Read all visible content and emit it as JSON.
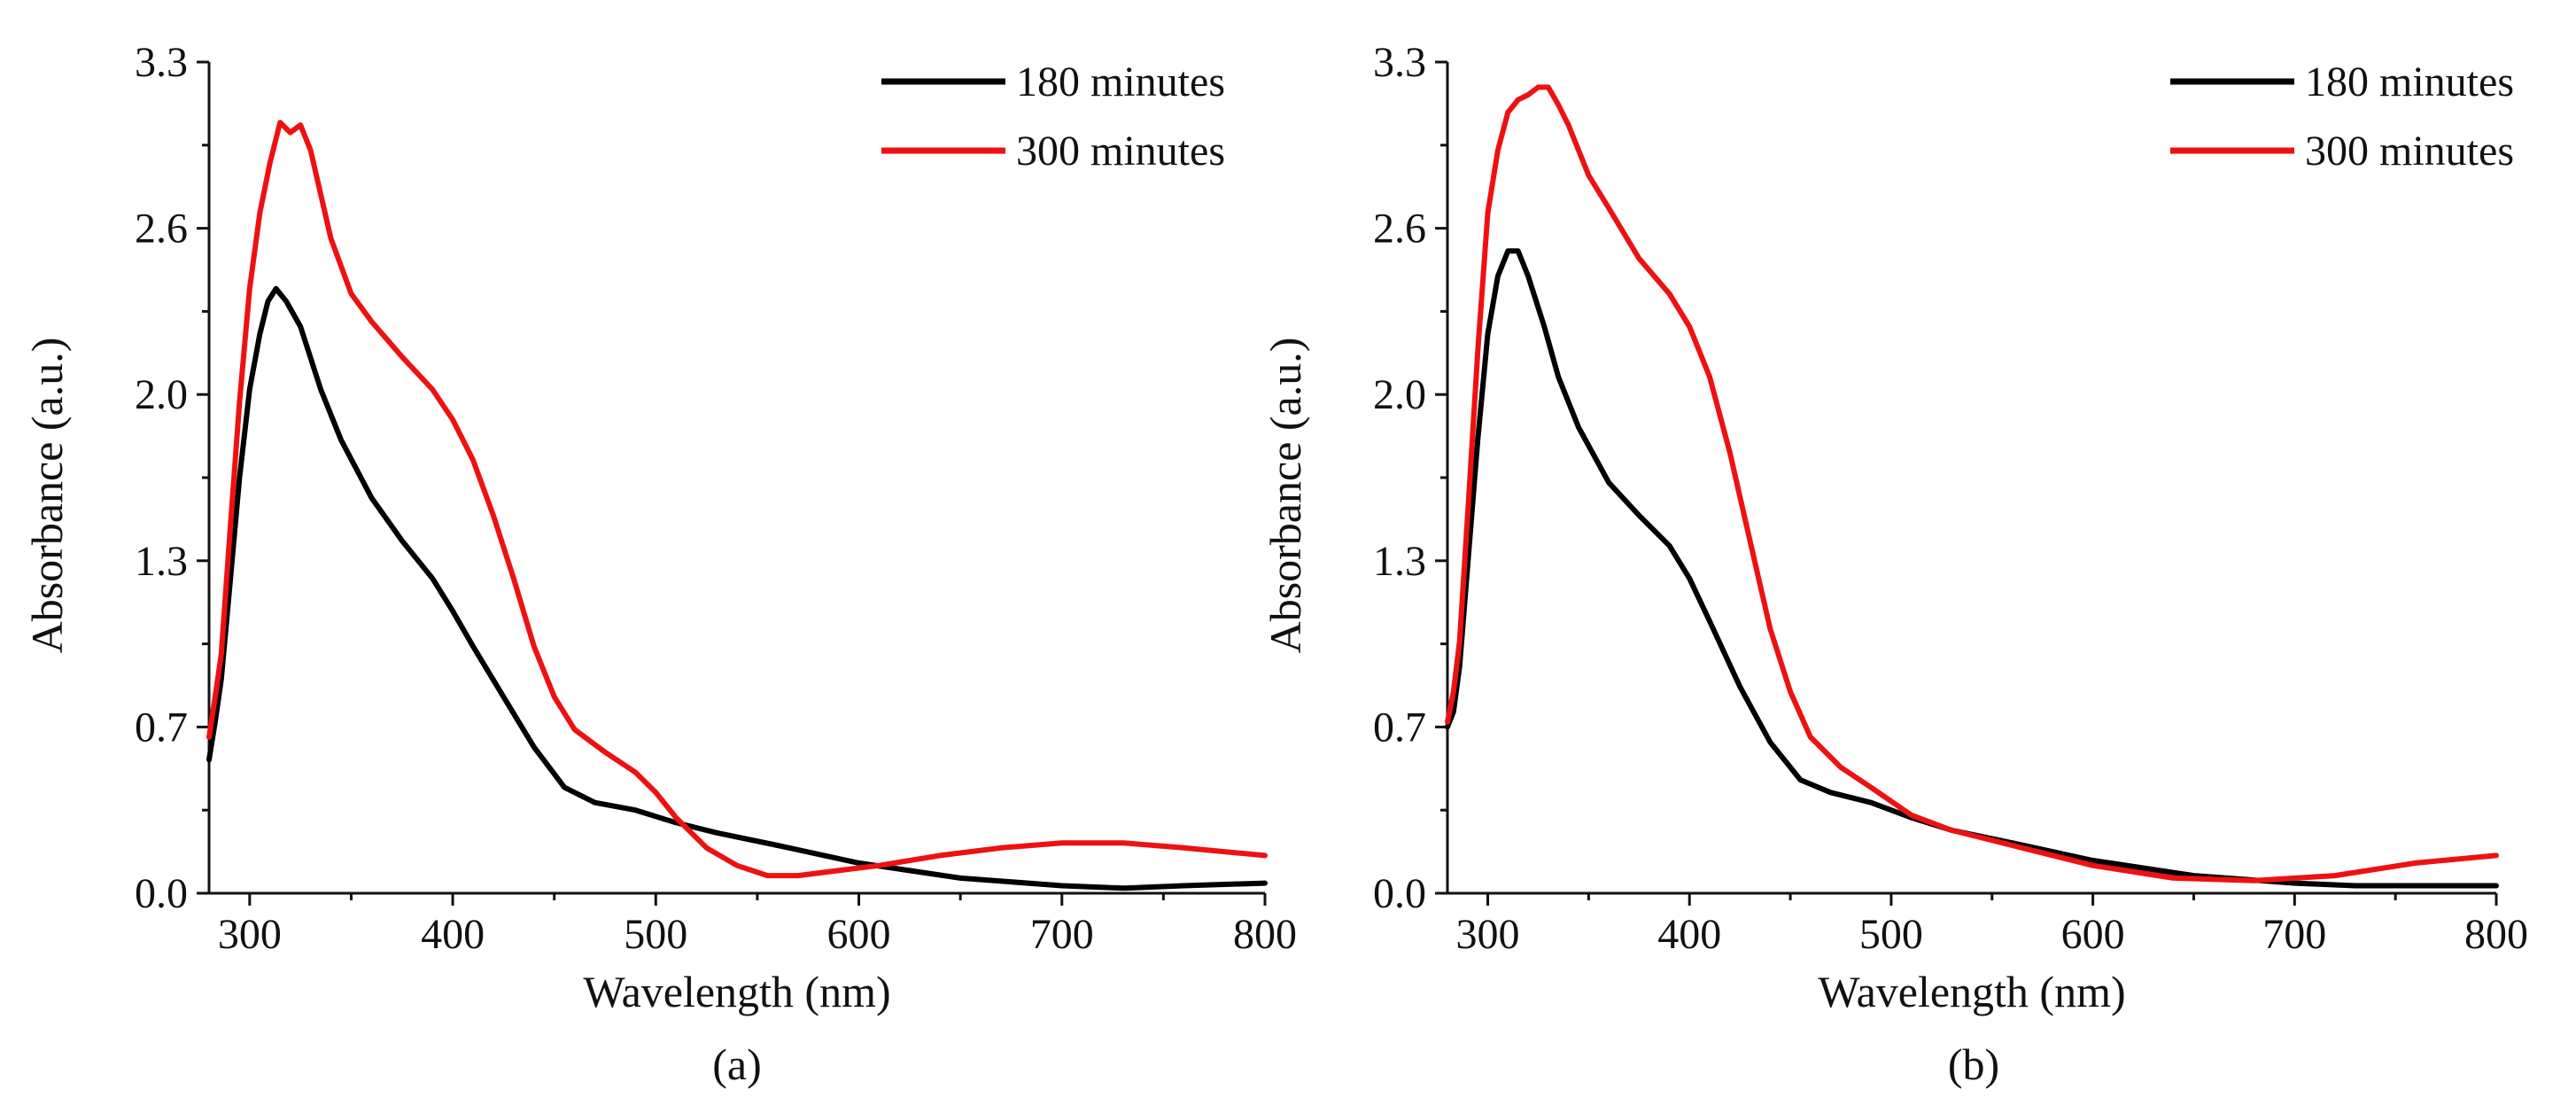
{
  "colors": {
    "series_180": "#000000",
    "series_300": "#ee1111",
    "axis": "#111111"
  },
  "chart_data": [
    {
      "type": "line",
      "panel_label": "(a)",
      "xlabel": "Wavelength (nm)",
      "ylabel": "Absorbance (a.u.)",
      "xlim": [
        280,
        800
      ],
      "ylim": [
        0.0,
        3.3
      ],
      "xticks": [
        300,
        400,
        500,
        600,
        700,
        800
      ],
      "xtick_labels": [
        "300",
        "400",
        "500",
        "600",
        "700",
        "800"
      ],
      "yticks": [
        0.0,
        0.66,
        1.32,
        1.98,
        2.64,
        3.3
      ],
      "ytick_labels": [
        "0.0",
        "0.7",
        "1.3",
        "2.0",
        "2.6",
        "3.3"
      ],
      "legend_position": "top-right",
      "series": [
        {
          "name": "180 minutes",
          "x": [
            280,
            283,
            286,
            290,
            295,
            300,
            305,
            309,
            313,
            318,
            325,
            335,
            345,
            360,
            375,
            390,
            400,
            410,
            425,
            440,
            455,
            470,
            490,
            510,
            530,
            560,
            600,
            650,
            700,
            730,
            760,
            800
          ],
          "y": [
            0.53,
            0.68,
            0.85,
            1.2,
            1.65,
            2.0,
            2.22,
            2.35,
            2.4,
            2.35,
            2.25,
            2.0,
            1.8,
            1.57,
            1.4,
            1.25,
            1.12,
            0.98,
            0.78,
            0.58,
            0.42,
            0.36,
            0.33,
            0.28,
            0.24,
            0.19,
            0.12,
            0.06,
            0.03,
            0.02,
            0.03,
            0.04
          ]
        },
        {
          "name": "300 minutes",
          "x": [
            280,
            283,
            286,
            290,
            295,
            300,
            305,
            310,
            315,
            320,
            325,
            330,
            340,
            350,
            360,
            375,
            390,
            400,
            410,
            420,
            430,
            440,
            450,
            460,
            475,
            490,
            500,
            510,
            525,
            540,
            555,
            570,
            590,
            610,
            640,
            670,
            700,
            730,
            760,
            800
          ],
          "y": [
            0.62,
            0.78,
            0.95,
            1.4,
            1.95,
            2.4,
            2.7,
            2.9,
            3.06,
            3.02,
            3.05,
            2.95,
            2.6,
            2.38,
            2.27,
            2.13,
            2.0,
            1.88,
            1.72,
            1.5,
            1.25,
            0.98,
            0.78,
            0.65,
            0.56,
            0.48,
            0.4,
            0.3,
            0.18,
            0.11,
            0.07,
            0.07,
            0.09,
            0.11,
            0.15,
            0.18,
            0.2,
            0.2,
            0.18,
            0.15
          ]
        }
      ]
    },
    {
      "type": "line",
      "panel_label": "(b)",
      "xlabel": "Wavelength (nm)",
      "ylabel": "Absorbance (a.u.)",
      "xlim": [
        280,
        800
      ],
      "ylim": [
        0.0,
        3.3
      ],
      "xticks": [
        300,
        400,
        500,
        600,
        700,
        800
      ],
      "xtick_labels": [
        "300",
        "400",
        "500",
        "600",
        "700",
        "800"
      ],
      "yticks": [
        0.0,
        0.66,
        1.32,
        1.98,
        2.64,
        3.3
      ],
      "ytick_labels": [
        "0.0",
        "0.7",
        "1.3",
        "2.0",
        "2.6",
        "3.3"
      ],
      "legend_position": "top-right",
      "series": [
        {
          "name": "180 minutes",
          "x": [
            280,
            283,
            286,
            290,
            295,
            300,
            305,
            310,
            315,
            320,
            328,
            335,
            345,
            360,
            375,
            390,
            400,
            410,
            425,
            440,
            455,
            470,
            490,
            510,
            530,
            560,
            600,
            650,
            700,
            730,
            760,
            800
          ],
          "y": [
            0.66,
            0.72,
            0.9,
            1.3,
            1.8,
            2.22,
            2.45,
            2.55,
            2.55,
            2.45,
            2.25,
            2.05,
            1.85,
            1.63,
            1.5,
            1.38,
            1.25,
            1.08,
            0.82,
            0.6,
            0.45,
            0.4,
            0.36,
            0.3,
            0.25,
            0.2,
            0.13,
            0.07,
            0.04,
            0.03,
            0.03,
            0.03
          ]
        },
        {
          "name": "300 minutes",
          "x": [
            280,
            283,
            286,
            290,
            295,
            300,
            305,
            310,
            315,
            320,
            325,
            330,
            335,
            340,
            350,
            360,
            375,
            390,
            400,
            410,
            420,
            430,
            440,
            450,
            460,
            475,
            490,
            510,
            530,
            560,
            600,
            640,
            680,
            720,
            760,
            800
          ],
          "y": [
            0.68,
            0.8,
            1.0,
            1.5,
            2.15,
            2.7,
            2.95,
            3.1,
            3.15,
            3.17,
            3.2,
            3.2,
            3.13,
            3.05,
            2.85,
            2.72,
            2.52,
            2.38,
            2.25,
            2.05,
            1.75,
            1.4,
            1.05,
            0.8,
            0.62,
            0.5,
            0.42,
            0.31,
            0.25,
            0.19,
            0.11,
            0.06,
            0.05,
            0.07,
            0.12,
            0.15
          ]
        }
      ]
    }
  ]
}
